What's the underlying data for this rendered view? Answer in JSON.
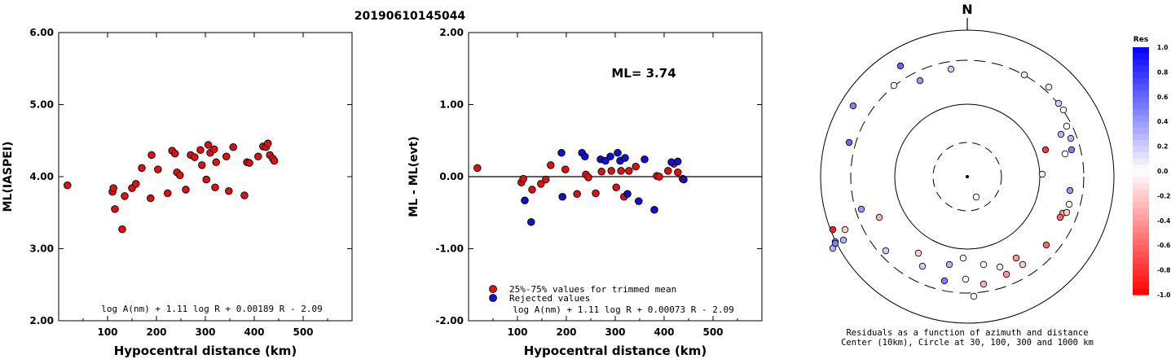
{
  "page_title": "20190610145044",
  "colors": {
    "red": "#dd1111",
    "blue": "#1111cc",
    "black": "#000000"
  },
  "chart_data": [
    {
      "type": "scatter",
      "panel": "left",
      "xlabel": "Hypocentral distance (km)",
      "ylabel": "ML(IASPEI)",
      "xlim": [
        0,
        600
      ],
      "ylim": [
        2.0,
        6.0
      ],
      "xticks": [
        "100",
        "200",
        "300",
        "400",
        "500"
      ],
      "xtick_values": [
        100,
        200,
        300,
        400,
        500
      ],
      "yticks": [
        "2.00",
        "3.00",
        "4.00",
        "5.00",
        "6.00"
      ],
      "ytick_values": [
        2,
        3,
        4,
        5,
        6
      ],
      "formula": "log A(nm) + 1.11 log R + 0.00189 R - 2.09",
      "points": [
        [
          18,
          3.88
        ],
        [
          110,
          3.79
        ],
        [
          112,
          3.84
        ],
        [
          115,
          3.55
        ],
        [
          130,
          3.27
        ],
        [
          135,
          3.73
        ],
        [
          150,
          3.84
        ],
        [
          158,
          3.9
        ],
        [
          170,
          4.12
        ],
        [
          188,
          3.7
        ],
        [
          190,
          4.3
        ],
        [
          203,
          4.1
        ],
        [
          223,
          3.77
        ],
        [
          232,
          4.36
        ],
        [
          238,
          4.32
        ],
        [
          242,
          4.06
        ],
        [
          248,
          4.02
        ],
        [
          260,
          3.82
        ],
        [
          270,
          4.3
        ],
        [
          278,
          4.27
        ],
        [
          290,
          4.37
        ],
        [
          293,
          4.16
        ],
        [
          302,
          3.96
        ],
        [
          306,
          4.44
        ],
        [
          310,
          4.33
        ],
        [
          318,
          4.38
        ],
        [
          320,
          3.85
        ],
        [
          322,
          4.2
        ],
        [
          343,
          4.28
        ],
        [
          348,
          3.8
        ],
        [
          357,
          4.41
        ],
        [
          380,
          3.74
        ],
        [
          385,
          4.2
        ],
        [
          390,
          4.19
        ],
        [
          408,
          4.28
        ],
        [
          418,
          4.42
        ],
        [
          424,
          4.41
        ],
        [
          428,
          4.46
        ],
        [
          432,
          4.3
        ],
        [
          438,
          4.25
        ],
        [
          441,
          4.22
        ]
      ]
    },
    {
      "type": "scatter",
      "panel": "middle",
      "xlabel": "Hypocentral distance (km)",
      "ylabel": "ML - ML(evt)",
      "xlim": [
        0,
        600
      ],
      "ylim": [
        -2.0,
        2.0
      ],
      "xticks": [
        "100",
        "200",
        "300",
        "400",
        "500"
      ],
      "xtick_values": [
        100,
        200,
        300,
        400,
        500
      ],
      "yticks": [
        "-2.00",
        "-1.00",
        "0.00",
        "1.00",
        "2.00"
      ],
      "ytick_values": [
        -2,
        -1,
        0,
        1,
        2
      ],
      "annotation": "ML= 3.74",
      "formula": "log A(nm) + 1.11 log R + 0.00073 R - 2.09",
      "legend": [
        {
          "label": "25%-75% values for trimmed mean",
          "color": "red"
        },
        {
          "label": "Rejected values",
          "color": "blue"
        }
      ],
      "series": [
        {
          "name": "25%-75% values for trimmed mean",
          "color": "red",
          "points": [
            [
              18,
              0.12
            ],
            [
              108,
              -0.08
            ],
            [
              112,
              -0.03
            ],
            [
              130,
              -0.18
            ],
            [
              148,
              -0.1
            ],
            [
              158,
              -0.04
            ],
            [
              168,
              0.16
            ],
            [
              198,
              0.1
            ],
            [
              222,
              -0.24
            ],
            [
              240,
              0.03
            ],
            [
              245,
              -0.01
            ],
            [
              260,
              -0.23
            ],
            [
              272,
              0.07
            ],
            [
              292,
              0.08
            ],
            [
              302,
              -0.15
            ],
            [
              312,
              0.08
            ],
            [
              318,
              -0.28
            ],
            [
              328,
              0.08
            ],
            [
              342,
              0.14
            ],
            [
              385,
              0.01
            ],
            [
              390,
              0.0
            ],
            [
              408,
              0.08
            ],
            [
              420,
              0.18
            ],
            [
              428,
              0.06
            ],
            [
              438,
              -0.03
            ]
          ]
        },
        {
          "name": "Rejected values",
          "color": "blue",
          "points": [
            [
              115,
              -0.33
            ],
            [
              128,
              -0.63
            ],
            [
              190,
              0.33
            ],
            [
              192,
              -0.28
            ],
            [
              232,
              0.33
            ],
            [
              238,
              0.28
            ],
            [
              270,
              0.24
            ],
            [
              280,
              0.22
            ],
            [
              290,
              0.28
            ],
            [
              305,
              0.33
            ],
            [
              310,
              0.22
            ],
            [
              320,
              0.26
            ],
            [
              325,
              -0.24
            ],
            [
              348,
              -0.34
            ],
            [
              360,
              0.24
            ],
            [
              380,
              -0.46
            ],
            [
              415,
              0.2
            ],
            [
              428,
              0.21
            ],
            [
              440,
              -0.04
            ]
          ]
        }
      ]
    },
    {
      "type": "scatter",
      "panel": "right",
      "north_label": "N",
      "caption_line1": "Residuals as a function of azimuth and distance",
      "caption_line2": "Center (10km), Circle at 30, 100, 300 and 1000 km",
      "colorbar_title": "Res",
      "colorbar_ticks": [
        "1.0",
        "0.8",
        "0.6",
        "0.4",
        "0.2",
        "0.0",
        "-0.2",
        "-0.4",
        "-0.6",
        "-0.8",
        "-1.0"
      ],
      "colorbar_values": [
        1.0,
        0.8,
        0.6,
        0.4,
        0.2,
        0.0,
        -0.2,
        -0.4,
        -0.6,
        -0.8,
        -1.0
      ],
      "colorbar_colors": [
        "#0000ff",
        "#2e2ef9",
        "#5c5cf6",
        "#8a8af8",
        "#bcbcf8",
        "#ffffff",
        "#f8d8d8",
        "#f8b0b0",
        "#f08080",
        "#f05050",
        "#ff0000"
      ],
      "rings_km": [
        30,
        100,
        300,
        1000
      ],
      "stations": [
        [
          -82,
          -136,
          0.6
        ],
        [
          -58,
          -118,
          0.4
        ],
        [
          -90,
          -112,
          0.0
        ],
        [
          -140,
          -87,
          0.5
        ],
        [
          -145,
          -42,
          0.6
        ],
        [
          -20,
          -132,
          0.2
        ],
        [
          70,
          -125,
          -0.1
        ],
        [
          100,
          -110,
          -0.1
        ],
        [
          118,
          -82,
          0.0
        ],
        [
          112,
          -90,
          0.2
        ],
        [
          115,
          -52,
          0.3
        ],
        [
          122,
          -62,
          0.0
        ],
        [
          127,
          -47,
          0.3
        ],
        [
          128,
          -33,
          0.5
        ],
        [
          120,
          -28,
          0.0
        ],
        [
          96,
          -33,
          -0.8
        ],
        [
          92,
          -3,
          -0.1
        ],
        [
          126,
          17,
          0.4
        ],
        [
          125,
          34,
          0.0
        ],
        [
          117,
          45,
          -0.4
        ],
        [
          122,
          44,
          -0.2
        ],
        [
          114,
          50,
          -0.6
        ],
        [
          97,
          84,
          -0.6
        ],
        [
          60,
          100,
          -0.4
        ],
        [
          68,
          108,
          -0.2
        ],
        [
          48,
          120,
          -0.4
        ],
        [
          40,
          111,
          -0.1
        ],
        [
          20,
          108,
          0.0
        ],
        [
          8,
          147,
          0.0
        ],
        [
          -2,
          126,
          0.0
        ],
        [
          20,
          132,
          -0.3
        ],
        [
          -28,
          128,
          0.5
        ],
        [
          -22,
          108,
          0.3
        ],
        [
          -55,
          110,
          0.2
        ],
        [
          -60,
          94,
          -0.2
        ],
        [
          -100,
          91,
          0.2
        ],
        [
          -108,
          50,
          -0.3
        ],
        [
          -130,
          40,
          0.4
        ],
        [
          -150,
          65,
          -0.2
        ],
        [
          -152,
          78,
          0.3
        ],
        [
          -162,
          80,
          0.4
        ],
        [
          -165,
          88,
          0.3
        ],
        [
          -165,
          65,
          -0.9
        ],
        [
          -162,
          82,
          0.5
        ],
        [
          -5,
          100,
          0.0
        ],
        [
          11,
          25,
          0.0
        ]
      ]
    }
  ]
}
